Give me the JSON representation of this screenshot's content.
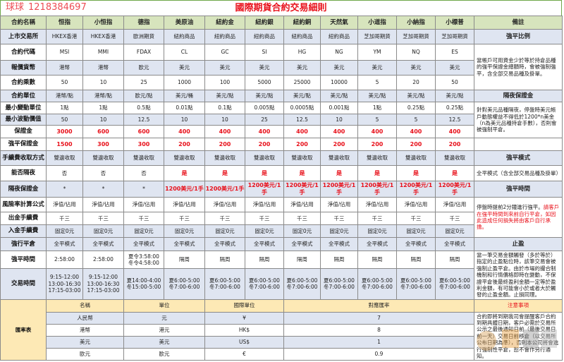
{
  "title": "國際期貨合約交易細則",
  "header": {
    "label": "合約名稱",
    "columns": [
      "恒指",
      "小恒指",
      "德指",
      "美原油",
      "紐約金",
      "紐約銀",
      "紐約銅",
      "天然氣",
      "小道指",
      "小納指",
      "小標普"
    ],
    "remarks": "備註"
  },
  "rows": [
    {
      "label": "上市交易所",
      "values": [
        "HKEX香港",
        "HKEX香港",
        "歐洲期貨",
        "紐約商品",
        "紐約商品",
        "紐約商品",
        "紐約商品",
        "紐約商品",
        "芝加哥期貨",
        "芝加哥期貨",
        "芝加哥期貨"
      ]
    },
    {
      "label": "合約代碼",
      "values": [
        "MSI",
        "MMI",
        "FDAX",
        "CL",
        "GC",
        "SI",
        "HG",
        "NG",
        "YM",
        "NQ",
        "ES"
      ]
    },
    {
      "label": "報價貨幣",
      "values": [
        "港幣",
        "港幣",
        "歐元",
        "美元",
        "美元",
        "美元",
        "美元",
        "美元",
        "美元",
        "美元",
        "美元"
      ]
    },
    {
      "label": "合約乘數",
      "values": [
        "50",
        "10",
        "25",
        "1000",
        "100",
        "5000",
        "25000",
        "10000",
        "5",
        "20",
        "50"
      ]
    },
    {
      "label": "合約單位",
      "values": [
        "港幣/點",
        "港幣/點",
        "歐元/點",
        "美元/桶",
        "美元/點",
        "美元/點",
        "美元/點",
        "美元/點",
        "美元/點",
        "美元/點",
        "美元/點"
      ]
    },
    {
      "label": "最小變動單位",
      "values": [
        "1點",
        "1點",
        "0.5點",
        "0.01點",
        "0.1點",
        "0.005點",
        "0.0005點",
        "0.001點",
        "1點",
        "0.25點",
        "0.25點"
      ]
    },
    {
      "label": "最小波動價值",
      "values": [
        "50",
        "10",
        "12.5",
        "10",
        "10",
        "25",
        "12.5",
        "10",
        "5",
        "5",
        "12.5"
      ]
    },
    {
      "label": "保證金",
      "values": [
        "3000",
        "600",
        "600",
        "400",
        "400",
        "400",
        "400",
        "400",
        "400",
        "400",
        "400"
      ]
    },
    {
      "label": "強平保證金",
      "values": [
        "1500",
        "300",
        "300",
        "200",
        "200",
        "200",
        "200",
        "200",
        "200",
        "200",
        "200"
      ]
    },
    {
      "label": "手續費收取方式",
      "values": [
        "雙邊收取",
        "雙邊收取",
        "雙邊收取",
        "雙邊收取",
        "雙邊收取",
        "雙邊收取",
        "雙邊收取",
        "雙邊收取",
        "雙邊收取",
        "雙邊收取",
        "雙邊收取"
      ]
    },
    {
      "label": "能否隔夜",
      "values": [
        "否",
        "否",
        "否",
        "是",
        "是",
        "是",
        "是",
        "是",
        "是",
        "是",
        "是"
      ]
    },
    {
      "label": "隔夜保證金",
      "values": [
        "*",
        "*",
        "*",
        "1200美元/1手",
        "1200美元/1手",
        "1200美元/1手",
        "1200美元/1手",
        "1200美元/1手",
        "1200美元/1手",
        "1200美元/1手",
        "1200美元/1手"
      ]
    },
    {
      "label": "風險率計算公式",
      "values": [
        "淨值/佔用",
        "淨值/佔用",
        "淨值/佔用",
        "淨值/佔用",
        "淨值/佔用",
        "淨值/佔用",
        "淨值/佔用",
        "淨值/佔用",
        "淨值/佔用",
        "淨值/佔用",
        "淨值/佔用"
      ]
    },
    {
      "label": "出金手續費",
      "values": [
        "千三",
        "千三",
        "千三",
        "千三",
        "千三",
        "千三",
        "千三",
        "千三",
        "千三",
        "千三",
        "千三"
      ]
    },
    {
      "label": "入金手續費",
      "values": [
        "固定0元",
        "固定0元",
        "固定0元",
        "固定0元",
        "固定0元",
        "固定0元",
        "固定0元",
        "固定0元",
        "固定0元",
        "固定0元",
        "固定0元"
      ]
    },
    {
      "label": "強行平倉",
      "values": [
        "全平模式",
        "全平模式",
        "全平模式",
        "全平模式",
        "全平模式",
        "全平模式",
        "全平模式",
        "全平模式",
        "全平模式",
        "全平模式",
        "全平模式"
      ]
    },
    {
      "label": "強平時間",
      "values": [
        "2:58:00",
        "2:58:00",
        "夏令3:58:00\n冬令4:58:00",
        "隔周",
        "隔周",
        "隔周",
        "隔周",
        "隔周",
        "隔周",
        "隔周",
        "隔周"
      ]
    },
    {
      "label": "交易時間",
      "values": [
        "9:15-12:00\n13:00-16:30\n17:15-03:00",
        "9:15-12:00\n13:00-16:30\n17:15-03:00",
        "夏14:00-4:00\n冬15:00-5:00",
        "夏6:00-5:00\n冬7:00-6:00",
        "夏6:00-5:00\n冬7:00-6:00",
        "夏6:00-5:00\n冬7:00-6:00",
        "夏6:00-5:00\n冬7:00-6:00",
        "夏6:00-5:00\n冬7:00-6:00",
        "夏6:00-5:00\n冬7:00-6:00",
        "夏6:00-5:00\n冬7:00-6:00",
        "夏6:00-5:00\n冬7:00-6:00"
      ]
    }
  ],
  "remarks": {
    "liquidation_ratio_title": "強平比例",
    "liquidation_ratio_text": "當帳戶可用資金少於等於持倉品種的強平保證金總額時，會被強制強平，含全部交易品種及掛單。",
    "overnight_margin_title": "隔夜保證金",
    "overnight_margin_text": "針對美元品種隔夜，停盤時美元帳戶動態權益不得低於1200*n美金（n為美元品種持倉手數），否則會被強制平倉。",
    "liquidation_mode_title": "強平模式",
    "liquidation_mode_text": "全平模式（含全部交易品種及掛單）",
    "liquidation_time_title": "強平時間",
    "liquidation_time_text": "停盤時提前2分鐘進行強平。",
    "liquidation_time_warning": "請客戶在強平時間到來前自行平倉，如因此造成任何損失將由客戶自行承擔。",
    "take_profit_title": "止盈",
    "take_profit_text": "當一筆交易金額觸發（多於等於）指定的止盈點位時，該筆交易會被強制止盈平倉。由於市場的撮合制機制和行情價格即時在變動，不保證平倉後最終盈利金額一定等於盈利金額，有可能會小於或者大於觸發的止盈金額。止損同理。"
  },
  "currency": {
    "label": "匯率表",
    "headers": [
      "名稱",
      "單位",
      "國際單位",
      "對應匯率",
      "注意事項"
    ],
    "rows": [
      {
        "name": "人民幣",
        "unit": "元",
        "intl": "¥",
        "rate": "7"
      },
      {
        "name": "港幣",
        "unit": "港元",
        "intl": "HK$",
        "rate": "8"
      },
      {
        "name": "美元",
        "unit": "美元",
        "intl": "US$",
        "rate": "1"
      },
      {
        "name": "歐元",
        "unit": "歐元",
        "intl": "€",
        "rate": "0.9"
      }
    ],
    "note": "合約即將到期我司會提醒客戶合約到期具體日期，客戶必需於交易所公示之最後通知日前（最後交易日前一天）交易日前移倉（以交易所公布日期為準），否則本公司將會進行強制性平倉，恕不會作另行通知。"
  },
  "watermark": {
    "name": "球球",
    "id": "1218384697"
  },
  "colors": {
    "accent_red": "#e8101a",
    "header_green": "#d7e4bd",
    "row_blue": "#dfe5f1",
    "currency_header": "#fde9b5"
  }
}
